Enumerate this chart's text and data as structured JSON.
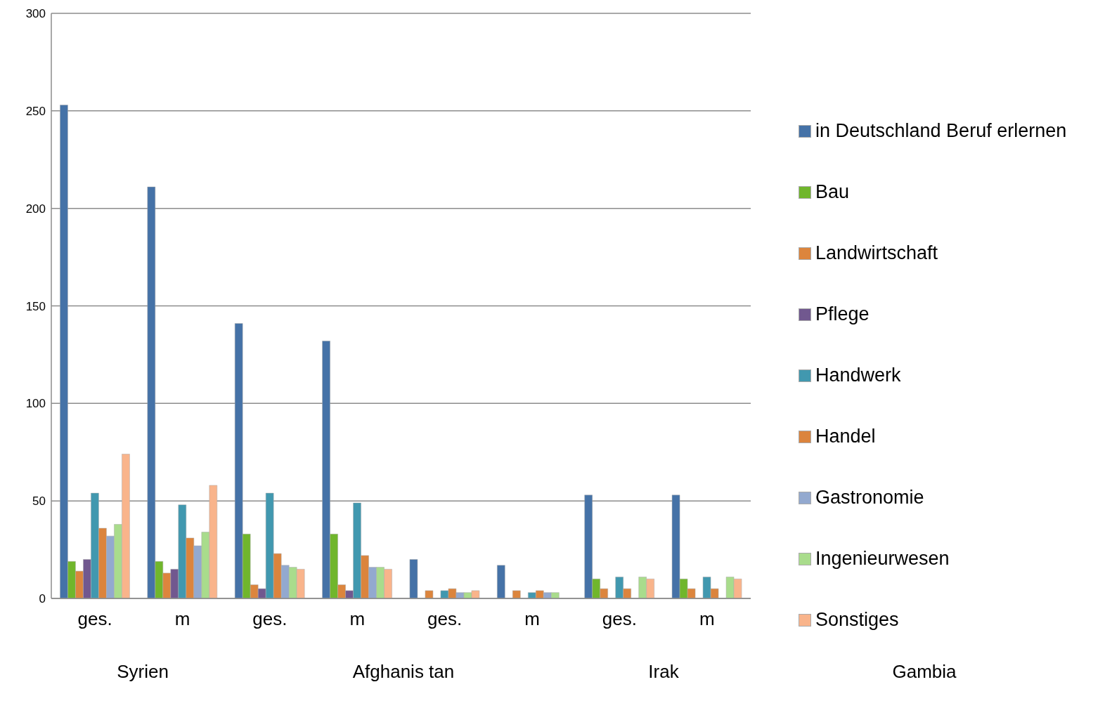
{
  "chart_data": {
    "type": "bar",
    "categories": [
      "ges.",
      "m",
      "ges.",
      "m",
      "ges.",
      "m",
      "ges.",
      "m"
    ],
    "annotations": [
      "Syrien",
      "Afghanis tan",
      "Irak",
      "Gambia"
    ],
    "series": [
      {
        "name": "in Deutschland Beruf erlernen",
        "color": "#4572a7",
        "values": [
          253,
          211,
          141,
          132,
          20,
          17,
          53,
          53
        ]
      },
      {
        "name": "Bau",
        "color": "#70b62c",
        "values": [
          19,
          19,
          33,
          33,
          null,
          null,
          10,
          10
        ]
      },
      {
        "name": "Landwirtschaft",
        "color": "#dc853d",
        "values": [
          14,
          13,
          7,
          7,
          4,
          4,
          5,
          5
        ]
      },
      {
        "name": "Pflege",
        "color": "#71588f",
        "values": [
          20,
          15,
          5,
          4,
          null,
          null,
          null,
          null
        ]
      },
      {
        "name": "Handwerk",
        "color": "#4198af",
        "values": [
          54,
          48,
          54,
          49,
          4,
          3,
          11,
          11
        ]
      },
      {
        "name": "Handel",
        "color": "#db843d",
        "values": [
          36,
          31,
          23,
          22,
          5,
          4,
          5,
          5
        ]
      },
      {
        "name": "Gastronomie",
        "color": "#93a9cf",
        "values": [
          32,
          27,
          17,
          16,
          3,
          3,
          null,
          null
        ]
      },
      {
        "name": "Ingenieurwesen",
        "color": "#a9dc8c",
        "values": [
          38,
          34,
          16,
          16,
          3,
          3,
          11,
          11
        ]
      },
      {
        "name": "Sonstiges",
        "color": "#f9b48b",
        "values": [
          74,
          58,
          15,
          15,
          4,
          null,
          10,
          10
        ]
      }
    ],
    "ylim": [
      0,
      300
    ],
    "yticks": [
      0,
      50,
      100,
      150,
      200,
      250,
      300
    ],
    "grid": "y",
    "legend": "right"
  }
}
